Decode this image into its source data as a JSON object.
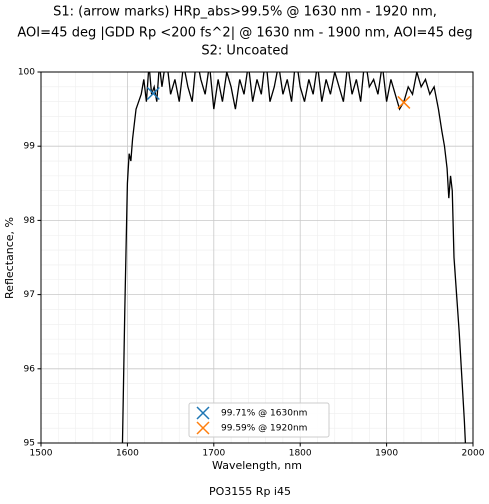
{
  "chart_data": {
    "type": "line",
    "title": [
      "S1: (arrow marks)  HRp_abs>99.5% @ 1630 nm - 1920 nm,",
      "AOI=45 deg  |GDD Rp <200 fs^2| @ 1630 nm - 1900 nm, AOI=45 deg",
      "S2:  Uncoated"
    ],
    "xlabel": "Wavelength, nm",
    "ylabel": "Reflectance, %",
    "footer": "PO3155 Rp i45",
    "color": "#000000",
    "x": [
      1594,
      1597,
      1600,
      1602,
      1604,
      1606,
      1608,
      1610,
      1613,
      1616,
      1619,
      1622,
      1625,
      1628,
      1631,
      1634,
      1637,
      1640,
      1645,
      1650,
      1655,
      1660,
      1665,
      1670,
      1675,
      1680,
      1685,
      1690,
      1695,
      1700,
      1705,
      1710,
      1715,
      1720,
      1725,
      1730,
      1735,
      1740,
      1745,
      1750,
      1755,
      1760,
      1765,
      1770,
      1775,
      1780,
      1785,
      1790,
      1795,
      1800,
      1805,
      1810,
      1815,
      1820,
      1825,
      1830,
      1835,
      1840,
      1845,
      1850,
      1855,
      1860,
      1865,
      1870,
      1875,
      1880,
      1885,
      1890,
      1895,
      1900,
      1905,
      1910,
      1915,
      1920,
      1925,
      1930,
      1935,
      1940,
      1945,
      1950,
      1955,
      1960,
      1964,
      1967,
      1970,
      1972,
      1974,
      1976,
      1978,
      1981,
      1984,
      1987,
      1990,
      1992
    ],
    "values": [
      94.8,
      96.8,
      98.5,
      98.9,
      98.8,
      99.1,
      99.3,
      99.5,
      99.6,
      99.7,
      99.9,
      99.6,
      100.1,
      99.7,
      99.8,
      99.6,
      100.1,
      99.8,
      100.2,
      99.7,
      99.9,
      99.6,
      100.1,
      99.8,
      99.6,
      100.2,
      99.9,
      99.7,
      100.1,
      99.5,
      99.9,
      99.6,
      100.0,
      99.8,
      99.5,
      99.9,
      99.7,
      100.1,
      99.6,
      99.9,
      99.7,
      100.2,
      99.6,
      99.8,
      100.1,
      99.7,
      99.9,
      99.6,
      100.2,
      99.8,
      99.6,
      99.9,
      99.7,
      100.1,
      99.6,
      99.9,
      99.7,
      100.0,
      99.8,
      99.6,
      100.1,
      99.7,
      99.9,
      99.6,
      100.2,
      99.8,
      99.9,
      99.7,
      100.1,
      99.6,
      99.9,
      99.7,
      99.5,
      99.6,
      99.8,
      99.7,
      100.0,
      99.8,
      99.9,
      99.7,
      99.8,
      99.5,
      99.2,
      99.0,
      98.7,
      98.3,
      98.6,
      98.4,
      97.5,
      97.0,
      96.5,
      95.9,
      95.3,
      94.8
    ],
    "markers": [
      {
        "name": "99.71% @ 1630nm",
        "color": "#1f77b4",
        "x": 1630,
        "value": 99.71
      },
      {
        "name": "99.59% @ 1920nm",
        "color": "#ff7f0e",
        "x": 1920,
        "value": 99.59
      }
    ],
    "xlim": [
      1500,
      2000
    ],
    "xticks": [
      1500,
      1600,
      1700,
      1800,
      1900,
      2000
    ],
    "ylim": [
      95,
      100
    ],
    "yticks": [
      95,
      96,
      97,
      98,
      99,
      100
    ],
    "grid": true
  }
}
